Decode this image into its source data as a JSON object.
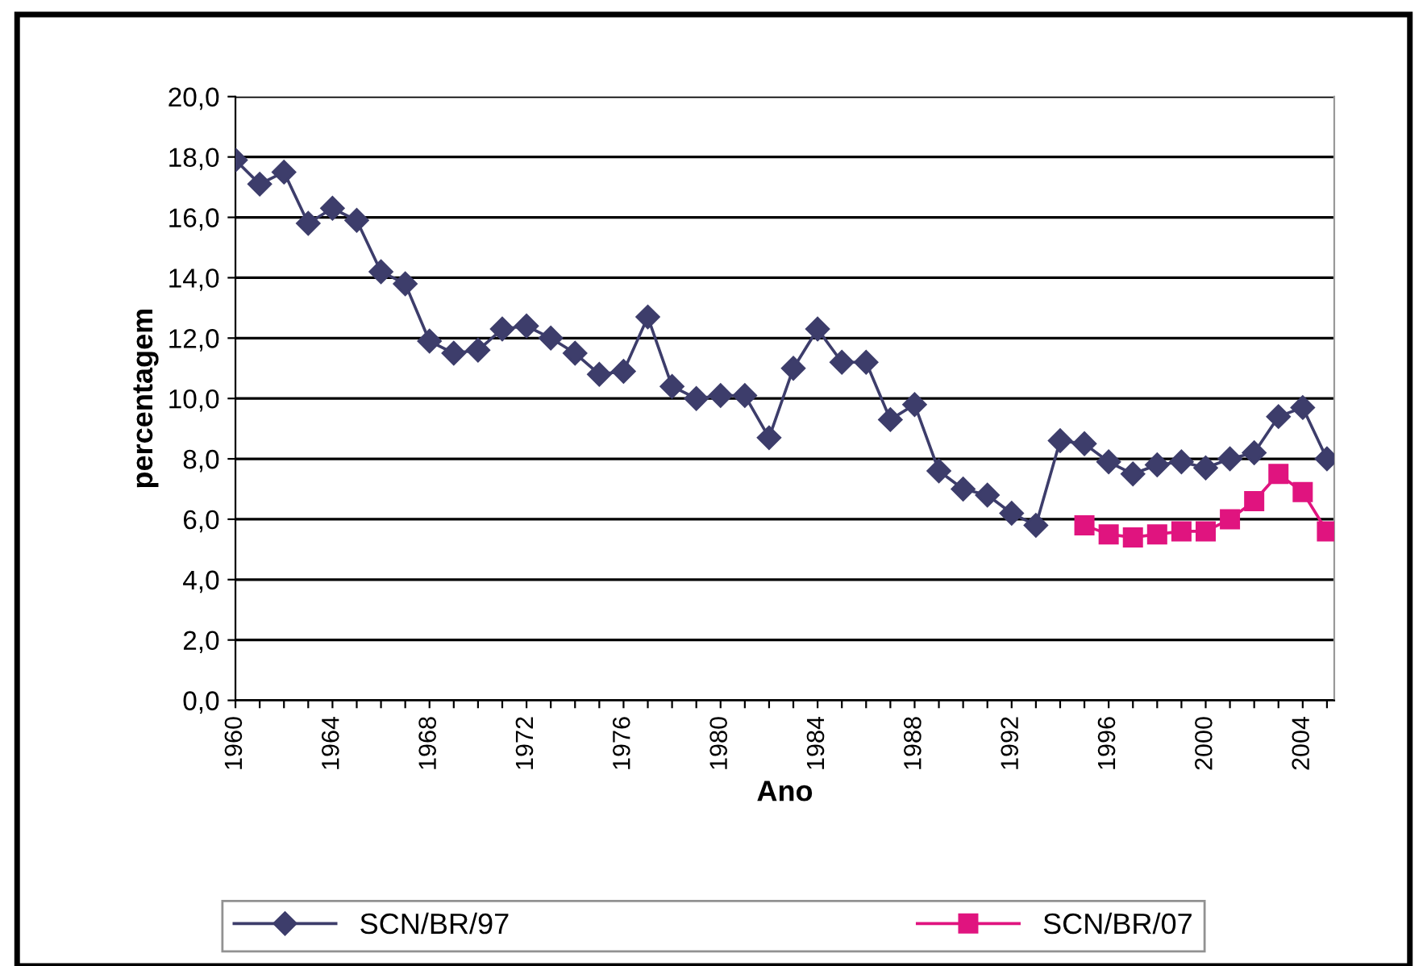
{
  "chart_data": {
    "type": "line",
    "xlabel": "Ano",
    "ylabel": "percentagem",
    "categories": [
      "1960",
      null,
      null,
      null,
      "1964",
      null,
      null,
      null,
      "1968",
      null,
      null,
      null,
      "1972",
      null,
      null,
      null,
      "1976",
      null,
      null,
      null,
      "1980",
      null,
      null,
      null,
      "1984",
      null,
      null,
      null,
      "1988",
      null,
      null,
      null,
      "1992",
      null,
      null,
      null,
      "1996",
      null,
      null,
      null,
      "2000",
      null,
      null,
      null,
      "2004",
      null
    ],
    "series": [
      {
        "name": "SCN/BR/97",
        "color": "#3d3d6b",
        "marker": "diamond",
        "values": [
          17.9,
          17.1,
          17.5,
          15.8,
          16.3,
          15.9,
          14.2,
          13.8,
          11.9,
          11.5,
          11.6,
          12.3,
          12.4,
          12.0,
          11.5,
          10.8,
          10.9,
          12.7,
          10.4,
          10.0,
          10.1,
          10.1,
          8.7,
          11.0,
          12.3,
          11.2,
          11.2,
          9.3,
          9.8,
          7.6,
          7.0,
          6.8,
          6.2,
          5.8,
          8.6,
          8.5,
          7.9,
          7.5,
          7.8,
          7.9,
          7.7,
          8.0,
          8.2,
          9.4,
          9.7,
          8.0
        ]
      },
      {
        "name": "SCN/BR/07",
        "color": "#e0147f",
        "marker": "square",
        "values": [
          null,
          null,
          null,
          null,
          null,
          null,
          null,
          null,
          null,
          null,
          null,
          null,
          null,
          null,
          null,
          null,
          null,
          null,
          null,
          null,
          null,
          null,
          null,
          null,
          null,
          null,
          null,
          null,
          null,
          null,
          null,
          null,
          null,
          null,
          null,
          5.8,
          5.5,
          5.4,
          5.5,
          5.6,
          5.6,
          6.0,
          6.6,
          7.5,
          6.9,
          5.6
        ]
      }
    ],
    "ylim": [
      0,
      20
    ],
    "yticks": [
      {
        "value": 0,
        "label": "0,0"
      },
      {
        "value": 2,
        "label": "2,0"
      },
      {
        "value": 4,
        "label": "4,0"
      },
      {
        "value": 6,
        "label": "6,0"
      },
      {
        "value": 8,
        "label": "8,0"
      },
      {
        "value": 10,
        "label": "10,0"
      },
      {
        "value": 12,
        "label": "12,0"
      },
      {
        "value": 14,
        "label": "14,0"
      },
      {
        "value": 16,
        "label": "16,0"
      },
      {
        "value": 18,
        "label": "18,0"
      },
      {
        "value": 20,
        "label": "20,0"
      }
    ],
    "grid": "y",
    "legend": "bottom",
    "line_style": "solid"
  }
}
